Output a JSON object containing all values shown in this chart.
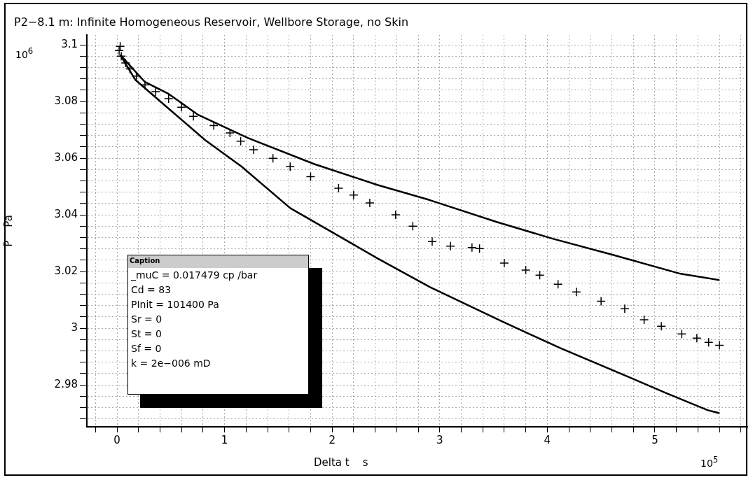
{
  "chart_data": {
    "type": "line",
    "title": "P2−8.1 m: Infinite Homogeneous Reservoir, Wellbore Storage, no Skin",
    "xlabel": "Delta t    s",
    "ylabel": "P    Pa",
    "annotations": [
      "10$^{6}$",
      "10$^{5}$",
      "Caption",
      "_muC = 0.017479 cp /bar",
      "Cd = 83",
      "PInit = 101400 Pa",
      "Sr = 0",
      "St = 0",
      "Sf = 0",
      "k = 2e−006 mD"
    ],
    "xlim": [
      -0.28,
      5.86
    ],
    "ylim": [
      2.9652,
      3.1035
    ],
    "xticks": [
      {
        "value": -0.2,
        "label": null
      },
      0,
      {
        "value": 0.2,
        "label": null
      },
      {
        "value": 0.4,
        "label": null
      },
      {
        "value": 0.6,
        "label": null
      },
      {
        "value": 0.8,
        "label": null
      },
      1,
      {
        "value": 1.2,
        "label": null
      },
      {
        "value": 1.4,
        "label": null
      },
      {
        "value": 1.6,
        "label": null
      },
      {
        "value": 1.8,
        "label": null
      },
      2,
      {
        "value": 2.2,
        "label": null
      },
      {
        "value": 2.4,
        "label": null
      },
      {
        "value": 2.6,
        "label": null
      },
      {
        "value": 2.8,
        "label": null
      },
      3,
      {
        "value": 3.2,
        "label": null
      },
      {
        "value": 3.4,
        "label": null
      },
      {
        "value": 3.6,
        "label": null
      },
      {
        "value": 3.8,
        "label": null
      },
      4,
      {
        "value": 4.2,
        "label": null
      },
      {
        "value": 4.4,
        "label": null
      },
      {
        "value": 4.6,
        "label": null
      },
      {
        "value": 4.8,
        "label": null
      },
      5,
      {
        "value": 5.2,
        "label": null
      },
      {
        "value": 5.4,
        "label": null
      },
      {
        "value": 5.6,
        "label": null
      },
      {
        "value": 5.8,
        "label": null
      }
    ],
    "yticks": [
      {
        "value": 2.968,
        "label": null
      },
      {
        "value": 2.972,
        "label": null
      },
      {
        "value": 2.976,
        "label": null
      },
      2.98,
      {
        "value": 2.984,
        "label": null
      },
      {
        "value": 2.988,
        "label": null
      },
      {
        "value": 2.992,
        "label": null
      },
      {
        "value": 2.996,
        "label": null
      },
      3,
      {
        "value": 3.004,
        "label": null
      },
      {
        "value": 3.008,
        "label": null
      },
      {
        "value": 3.012,
        "label": null
      },
      {
        "value": 3.016,
        "label": null
      },
      3.02,
      {
        "value": 3.024,
        "label": null
      },
      {
        "value": 3.028,
        "label": null
      },
      {
        "value": 3.032,
        "label": null
      },
      {
        "value": 3.036,
        "label": null
      },
      3.04,
      {
        "value": 3.044,
        "label": null
      },
      {
        "value": 3.048,
        "label": null
      },
      {
        "value": 3.052,
        "label": null
      },
      {
        "value": 3.056,
        "label": null
      },
      3.06,
      {
        "value": 3.064,
        "label": null
      },
      {
        "value": 3.068,
        "label": null
      },
      {
        "value": 3.072,
        "label": null
      },
      {
        "value": 3.076,
        "label": null
      },
      3.08,
      {
        "value": 3.084,
        "label": null
      },
      {
        "value": 3.088,
        "label": null
      },
      {
        "value": 3.092,
        "label": null
      },
      {
        "value": 3.096,
        "label": null
      },
      3.1
    ],
    "grid": true,
    "legend": false,
    "line_style": "solid",
    "series": [
      {
        "type": "line",
        "marker": "none",
        "color": "#000000",
        "x": [
          0.03,
          0.26,
          0.48,
          0.755,
          1.22,
          1.83,
          2.42,
          2.91,
          3.53,
          4.05,
          4.61,
          5.24,
          5.6
        ],
        "values": [
          3.0965,
          3.0869,
          3.0827,
          3.0753,
          3.0671,
          3.058,
          3.0506,
          3.0452,
          3.0375,
          3.0316,
          3.0259,
          3.0192,
          3.017
        ]
      },
      {
        "type": "line",
        "marker": "none",
        "color": "#000000",
        "x": [
          0.03,
          0.17,
          0.48,
          0.82,
          1.16,
          1.61,
          2.42,
          2.91,
          3.58,
          4.12,
          4.75,
          5.11,
          5.49,
          5.6
        ],
        "values": [
          3.0965,
          3.0877,
          3.0775,
          3.0664,
          3.057,
          3.0424,
          3.0247,
          3.0145,
          3.0024,
          2.993,
          2.9829,
          2.977,
          2.9711,
          2.97
        ]
      },
      {
        "type": "scatter",
        "marker": "cross",
        "color": "#000000",
        "x": [
          0.02,
          0.03,
          0.04,
          0.08,
          0.12,
          0.18,
          0.26,
          0.36,
          0.48,
          0.6,
          0.71,
          0.9,
          1.05,
          1.15,
          1.27,
          1.45,
          1.61,
          1.8,
          2.06,
          2.2,
          2.35,
          2.59,
          2.75,
          2.93,
          3.1,
          3.3,
          3.37,
          3.6,
          3.8,
          3.93,
          4.1,
          4.27,
          4.5,
          4.72,
          4.9,
          5.06,
          5.25,
          5.39,
          5.5,
          5.6
        ],
        "values": [
          3.098,
          3.0995,
          3.096,
          3.0936,
          3.0915,
          3.089,
          3.0859,
          3.0835,
          3.081,
          3.078,
          3.0748,
          3.0715,
          3.0689,
          3.066,
          3.063,
          3.06,
          3.057,
          3.0535,
          3.0494,
          3.047,
          3.0442,
          3.04,
          3.036,
          3.0306,
          3.029,
          3.0285,
          3.0281,
          3.023,
          3.0205,
          3.0187,
          3.0155,
          3.0128,
          3.0095,
          3.0069,
          3.003,
          3.0007,
          2.998,
          2.9965,
          2.995,
          2.994
        ]
      }
    ]
  }
}
